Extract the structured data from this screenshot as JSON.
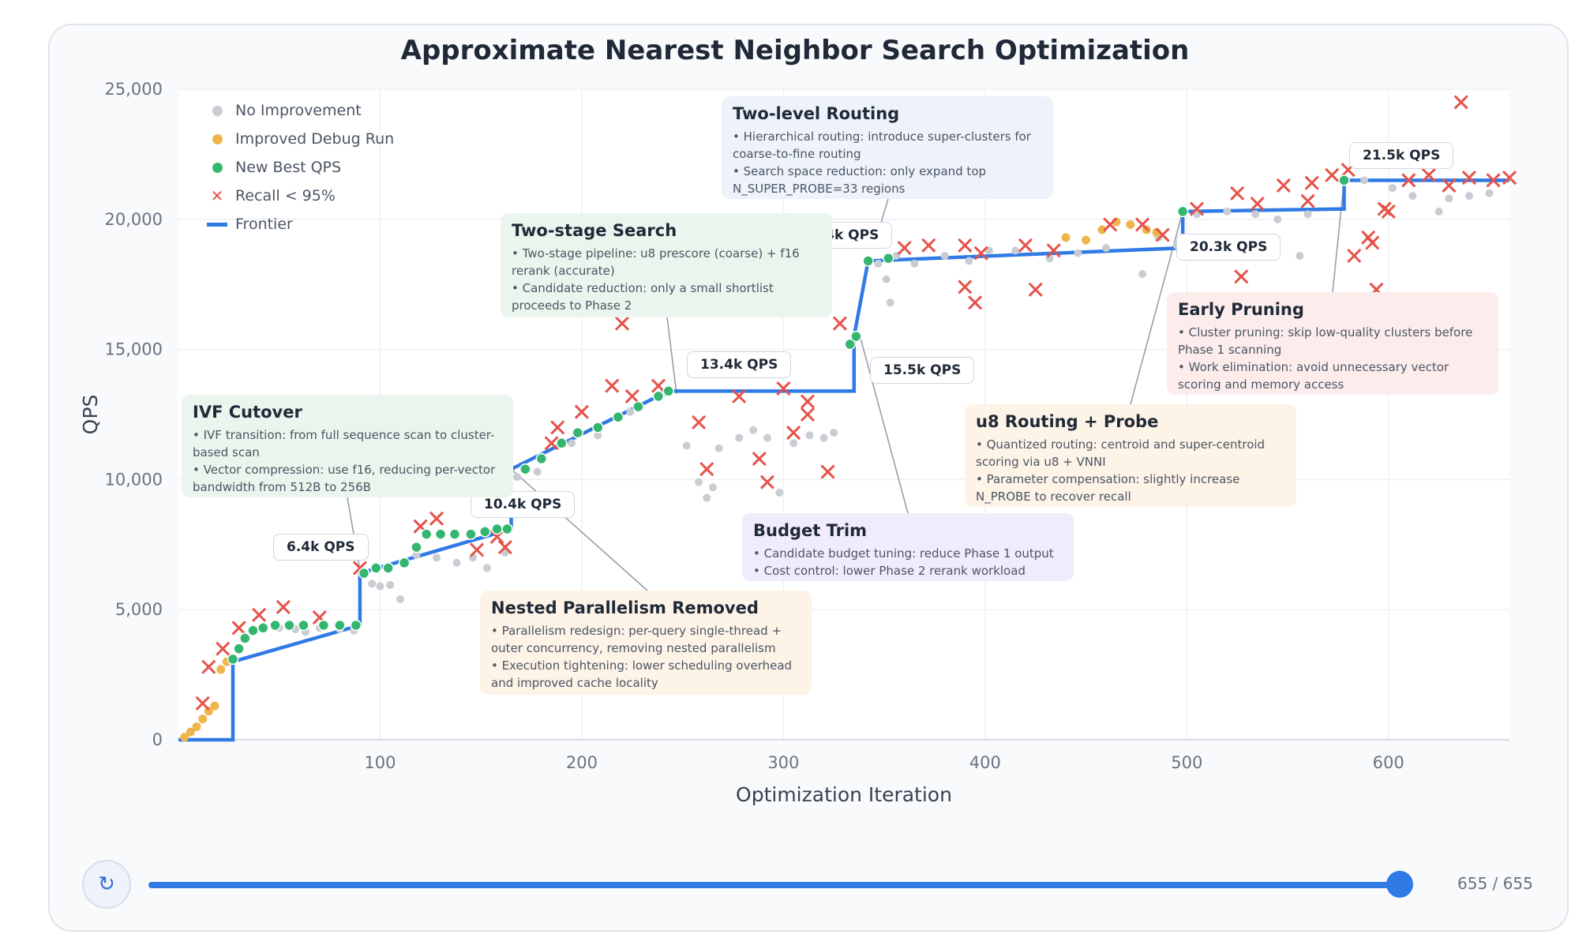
{
  "title": "Approximate Nearest Neighbor Search Optimization",
  "legend": [
    {
      "label": "No Improvement",
      "color": "#c9ccd3",
      "kind": "dot"
    },
    {
      "label": "Improved Debug Run",
      "color": "#f0b44c",
      "kind": "dot"
    },
    {
      "label": "New Best QPS",
      "color": "#35b66f",
      "kind": "dot"
    },
    {
      "label": "Recall < 95%",
      "color": "#e5534b",
      "kind": "cross"
    },
    {
      "label": "Frontier",
      "color": "#2f7ae5",
      "kind": "line"
    }
  ],
  "chart_data": {
    "type": "scatter",
    "title": "Approximate Nearest Neighbor Search Optimization",
    "xlabel": "Optimization Iteration",
    "ylabel": "QPS",
    "xlim": [
      0,
      660
    ],
    "ylim": [
      0,
      25000
    ],
    "x_ticks": [
      "100",
      "200",
      "300",
      "400",
      "500",
      "600"
    ],
    "y_ticks": [
      "0",
      "5,000",
      "10,000",
      "15,000",
      "20,000",
      "25,000"
    ],
    "grid": true,
    "legend_position": "top-left",
    "frontier": [
      [
        0,
        0
      ],
      [
        27,
        0
      ],
      [
        27,
        3000
      ],
      [
        90,
        4400
      ],
      [
        90,
        6400
      ],
      [
        165,
        8100
      ],
      [
        165,
        10400
      ],
      [
        243,
        13400
      ],
      [
        335,
        13400
      ],
      [
        335,
        15500
      ],
      [
        342,
        18400
      ],
      [
        498,
        18900
      ],
      [
        498,
        20300
      ],
      [
        578,
        20400
      ],
      [
        578,
        21500
      ],
      [
        660,
        21500
      ]
    ],
    "series": [
      {
        "name": "No Improvement",
        "color": "#c9ccd3",
        "points": [
          [
            50,
            4300
          ],
          [
            58,
            4250
          ],
          [
            63,
            4150
          ],
          [
            70,
            4300
          ],
          [
            80,
            4250
          ],
          [
            87,
            4200
          ],
          [
            96,
            6000
          ],
          [
            100,
            5900
          ],
          [
            105,
            5950
          ],
          [
            110,
            5400
          ],
          [
            118,
            7100
          ],
          [
            128,
            7000
          ],
          [
            138,
            6800
          ],
          [
            146,
            7000
          ],
          [
            153,
            6600
          ],
          [
            162,
            7200
          ],
          [
            168,
            10100
          ],
          [
            178,
            10300
          ],
          [
            195,
            11400
          ],
          [
            208,
            11700
          ],
          [
            224,
            12600
          ],
          [
            240,
            13300
          ],
          [
            252,
            11300
          ],
          [
            258,
            9900
          ],
          [
            262,
            9300
          ],
          [
            265,
            9700
          ],
          [
            268,
            11200
          ],
          [
            278,
            11600
          ],
          [
            285,
            11900
          ],
          [
            292,
            11600
          ],
          [
            298,
            9500
          ],
          [
            305,
            11400
          ],
          [
            313,
            11700
          ],
          [
            320,
            11600
          ],
          [
            325,
            11800
          ],
          [
            347,
            18300
          ],
          [
            351,
            17700
          ],
          [
            353,
            16800
          ],
          [
            356,
            18600
          ],
          [
            365,
            18300
          ],
          [
            380,
            18600
          ],
          [
            392,
            18400
          ],
          [
            402,
            18800
          ],
          [
            415,
            18800
          ],
          [
            432,
            18500
          ],
          [
            446,
            18700
          ],
          [
            460,
            18900
          ],
          [
            478,
            17900
          ],
          [
            486,
            19300
          ],
          [
            495,
            19000
          ],
          [
            505,
            20200
          ],
          [
            520,
            20300
          ],
          [
            534,
            20200
          ],
          [
            545,
            20000
          ],
          [
            560,
            20200
          ],
          [
            556,
            18600
          ],
          [
            588,
            21500
          ],
          [
            602,
            21200
          ],
          [
            612,
            20900
          ],
          [
            625,
            20300
          ],
          [
            630,
            20800
          ],
          [
            640,
            20900
          ],
          [
            650,
            21000
          ]
        ]
      },
      {
        "name": "Improved Debug Run",
        "color": "#f0b44c",
        "points": [
          [
            3,
            100
          ],
          [
            6,
            300
          ],
          [
            9,
            500
          ],
          [
            12,
            800
          ],
          [
            15,
            1100
          ],
          [
            18,
            1300
          ],
          [
            21,
            2700
          ],
          [
            24,
            3000
          ],
          [
            440,
            19300
          ],
          [
            450,
            19200
          ],
          [
            458,
            19600
          ],
          [
            465,
            19900
          ],
          [
            472,
            19800
          ],
          [
            480,
            19600
          ],
          [
            485,
            19500
          ]
        ]
      },
      {
        "name": "New Best QPS",
        "color": "#35b66f",
        "points": [
          [
            27,
            3100
          ],
          [
            30,
            3500
          ],
          [
            33,
            3900
          ],
          [
            37,
            4200
          ],
          [
            42,
            4300
          ],
          [
            48,
            4400
          ],
          [
            55,
            4400
          ],
          [
            62,
            4400
          ],
          [
            72,
            4400
          ],
          [
            80,
            4400
          ],
          [
            88,
            4400
          ],
          [
            92,
            6400
          ],
          [
            98,
            6600
          ],
          [
            104,
            6600
          ],
          [
            112,
            6800
          ],
          [
            118,
            7400
          ],
          [
            123,
            7900
          ],
          [
            130,
            7900
          ],
          [
            137,
            7900
          ],
          [
            145,
            7900
          ],
          [
            152,
            8000
          ],
          [
            158,
            8100
          ],
          [
            163,
            8100
          ],
          [
            172,
            10400
          ],
          [
            180,
            10800
          ],
          [
            190,
            11400
          ],
          [
            198,
            11800
          ],
          [
            208,
            12000
          ],
          [
            218,
            12400
          ],
          [
            228,
            12800
          ],
          [
            238,
            13200
          ],
          [
            243,
            13400
          ],
          [
            333,
            15200
          ],
          [
            336,
            15500
          ],
          [
            342,
            18400
          ],
          [
            352,
            18500
          ],
          [
            498,
            20300
          ],
          [
            578,
            21500
          ]
        ]
      },
      {
        "name": "Recall < 95%",
        "color": "#e5534b",
        "points": [
          [
            12,
            1400
          ],
          [
            15,
            2800
          ],
          [
            22,
            3500
          ],
          [
            30,
            4300
          ],
          [
            40,
            4800
          ],
          [
            52,
            5100
          ],
          [
            70,
            4700
          ],
          [
            90,
            6600
          ],
          [
            120,
            8200
          ],
          [
            128,
            8500
          ],
          [
            148,
            7300
          ],
          [
            158,
            7800
          ],
          [
            162,
            7400
          ],
          [
            185,
            11400
          ],
          [
            188,
            12000
          ],
          [
            200,
            12600
          ],
          [
            215,
            13600
          ],
          [
            225,
            13200
          ],
          [
            238,
            13600
          ],
          [
            220,
            16000
          ],
          [
            258,
            12200
          ],
          [
            262,
            10400
          ],
          [
            278,
            13200
          ],
          [
            288,
            10800
          ],
          [
            292,
            9900
          ],
          [
            300,
            13500
          ],
          [
            305,
            11800
          ],
          [
            312,
            13000
          ],
          [
            312,
            12500
          ],
          [
            322,
            10300
          ],
          [
            328,
            16000
          ],
          [
            360,
            18900
          ],
          [
            372,
            19000
          ],
          [
            390,
            19000
          ],
          [
            390,
            17400
          ],
          [
            395,
            16800
          ],
          [
            398,
            18700
          ],
          [
            420,
            19000
          ],
          [
            425,
            17300
          ],
          [
            434,
            18800
          ],
          [
            462,
            19800
          ],
          [
            478,
            19800
          ],
          [
            488,
            19400
          ],
          [
            505,
            20400
          ],
          [
            525,
            21000
          ],
          [
            527,
            17800
          ],
          [
            535,
            20600
          ],
          [
            548,
            21300
          ],
          [
            560,
            20700
          ],
          [
            562,
            21400
          ],
          [
            572,
            21700
          ],
          [
            580,
            21900
          ],
          [
            590,
            19300
          ],
          [
            592,
            19100
          ],
          [
            594,
            17300
          ],
          [
            600,
            20300
          ],
          [
            610,
            21500
          ],
          [
            620,
            21700
          ],
          [
            630,
            21300
          ],
          [
            640,
            21600
          ],
          [
            652,
            21500
          ],
          [
            660,
            21600
          ],
          [
            636,
            24500
          ],
          [
            583,
            18600
          ],
          [
            598,
            20400
          ]
        ]
      }
    ],
    "value_labels": [
      {
        "text": "6.4k QPS",
        "x": 88,
        "y": 6600
      },
      {
        "text": "10.4k QPS",
        "x": 175,
        "y": 9000
      },
      {
        "text": "13.4k QPS",
        "x": 280,
        "y": 14500
      },
      {
        "text": "18.4k QPS",
        "x": 330,
        "y": 19600
      },
      {
        "text": "15.5k QPS",
        "x": 370,
        "y": 14200
      },
      {
        "text": "20.3k QPS",
        "x": 525,
        "y": 19300
      },
      {
        "text": "21.5k QPS",
        "x": 610,
        "y": 22200
      }
    ]
  },
  "annotations": [
    {
      "title": "Two-level Routing",
      "lines": [
        "• Hierarchical routing: introduce super-clusters for coarse-to-fine routing",
        "• Search space reduction: only expand top N_SUPER_PROBE=33 regions"
      ]
    },
    {
      "title": "Two-stage Search",
      "lines": [
        "• Two-stage pipeline: u8 prescore (coarse) + f16 rerank (accurate)",
        "• Candidate reduction: only a small shortlist proceeds to Phase 2"
      ]
    },
    {
      "title": "IVF Cutover",
      "lines": [
        "• IVF transition: from full sequence scan to cluster-based scan",
        "• Vector compression: use f16, reducing per-vector bandwidth from 512B to 256B"
      ]
    },
    {
      "title": "Nested Parallelism Removed",
      "lines": [
        "• Parallelism redesign: per-query single-thread + outer concurrency, removing nested parallelism",
        "• Execution tightening: lower scheduling overhead and improved cache locality"
      ]
    },
    {
      "title": "Budget Trim",
      "lines": [
        "• Candidate budget tuning: reduce Phase 1 output",
        "• Cost control: lower Phase 2 rerank workload"
      ]
    },
    {
      "title": "u8 Routing + Probe",
      "lines": [
        "• Quantized routing: centroid and super-centroid scoring via u8 + VNNI",
        "• Parameter compensation: slightly increase N_PROBE to recover recall"
      ]
    },
    {
      "title": "Early Pruning",
      "lines": [
        "• Cluster pruning: skip low-quality clusters before Phase 1 scanning",
        "• Work elimination: avoid unnecessary vector scoring and memory access"
      ]
    }
  ],
  "player": {
    "counter": "655 / 655",
    "progress": 1.0,
    "replay_icon": "replay-icon"
  }
}
